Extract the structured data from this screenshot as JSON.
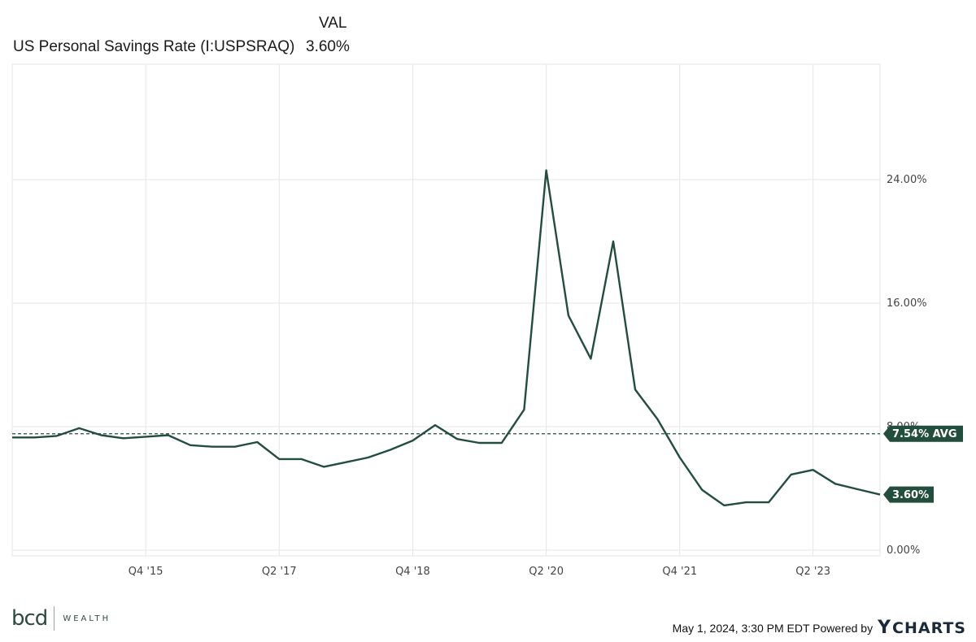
{
  "header": {
    "value_column_label": "VAL",
    "series_label": "US Personal Savings Rate (I:USPSRAQ)",
    "series_value": "3.60%"
  },
  "chart_data": {
    "type": "line",
    "title": "",
    "xlabel": "",
    "ylabel": "",
    "ylim": [
      0,
      27
    ],
    "y_ticks": [
      {
        "value": 0,
        "label": "0.00%"
      },
      {
        "value": 8,
        "label": "8.00%"
      },
      {
        "value": 16,
        "label": "16.00%"
      },
      {
        "value": 24,
        "label": "24.00%"
      }
    ],
    "x_ticks": [
      {
        "date": "2015-10-01",
        "label": "Q4 '15"
      },
      {
        "date": "2017-04-01",
        "label": "Q2 '17"
      },
      {
        "date": "2018-10-01",
        "label": "Q4 '18"
      },
      {
        "date": "2020-04-01",
        "label": "Q2 '20"
      },
      {
        "date": "2021-10-01",
        "label": "Q4 '21"
      },
      {
        "date": "2023-04-01",
        "label": "Q2 '23"
      }
    ],
    "x_range": [
      "2014-04-01",
      "2024-01-01"
    ],
    "grid": true,
    "series": [
      {
        "color": "#234d3c",
        "points": [
          [
            "2014-04-01",
            7.3
          ],
          [
            "2014-07-01",
            7.3
          ],
          [
            "2014-10-01",
            7.4
          ],
          [
            "2015-01-01",
            7.9
          ],
          [
            "2015-04-01",
            7.45
          ],
          [
            "2015-07-01",
            7.25
          ],
          [
            "2015-10-01",
            7.35
          ],
          [
            "2016-01-01",
            7.45
          ],
          [
            "2016-04-01",
            6.8
          ],
          [
            "2016-07-01",
            6.7
          ],
          [
            "2016-10-01",
            6.7
          ],
          [
            "2017-01-01",
            7.0
          ],
          [
            "2017-04-01",
            5.9
          ],
          [
            "2017-07-01",
            5.9
          ],
          [
            "2017-10-01",
            5.4
          ],
          [
            "2018-01-01",
            5.7
          ],
          [
            "2018-04-01",
            6.0
          ],
          [
            "2018-07-01",
            6.5
          ],
          [
            "2018-10-01",
            7.1
          ],
          [
            "2019-01-01",
            8.1
          ],
          [
            "2019-04-01",
            7.2
          ],
          [
            "2019-07-01",
            6.95
          ],
          [
            "2019-10-01",
            6.95
          ],
          [
            "2020-01-01",
            9.1
          ],
          [
            "2020-04-01",
            24.6
          ],
          [
            "2020-07-01",
            15.2
          ],
          [
            "2020-10-01",
            12.4
          ],
          [
            "2021-01-01",
            20.0
          ],
          [
            "2021-04-01",
            10.4
          ],
          [
            "2021-07-01",
            8.5
          ],
          [
            "2021-10-01",
            6.0
          ],
          [
            "2022-01-01",
            3.9
          ],
          [
            "2022-04-01",
            2.9
          ],
          [
            "2022-07-01",
            3.1
          ],
          [
            "2022-10-01",
            3.1
          ],
          [
            "2023-01-01",
            4.9
          ],
          [
            "2023-04-01",
            5.2
          ],
          [
            "2023-07-01",
            4.3
          ],
          [
            "2023-10-01",
            3.95
          ],
          [
            "2024-01-01",
            3.6
          ]
        ]
      }
    ],
    "average": {
      "value": 7.54,
      "label": "7.54% AVG"
    },
    "last_value_label": "3.60%"
  },
  "colors": {
    "line": "#234d3c",
    "grid": "#e6e6e6",
    "flag": "#234d3c",
    "avg_line": "#234d3c"
  },
  "footer": {
    "logo_text": "bcd",
    "logo_word": "WEALTH",
    "timestamp": "May 1, 2024, 3:30 PM EDT Powered by",
    "ycharts_text": "CHARTS",
    "ycharts_icon": "ycharts-y-icon"
  }
}
